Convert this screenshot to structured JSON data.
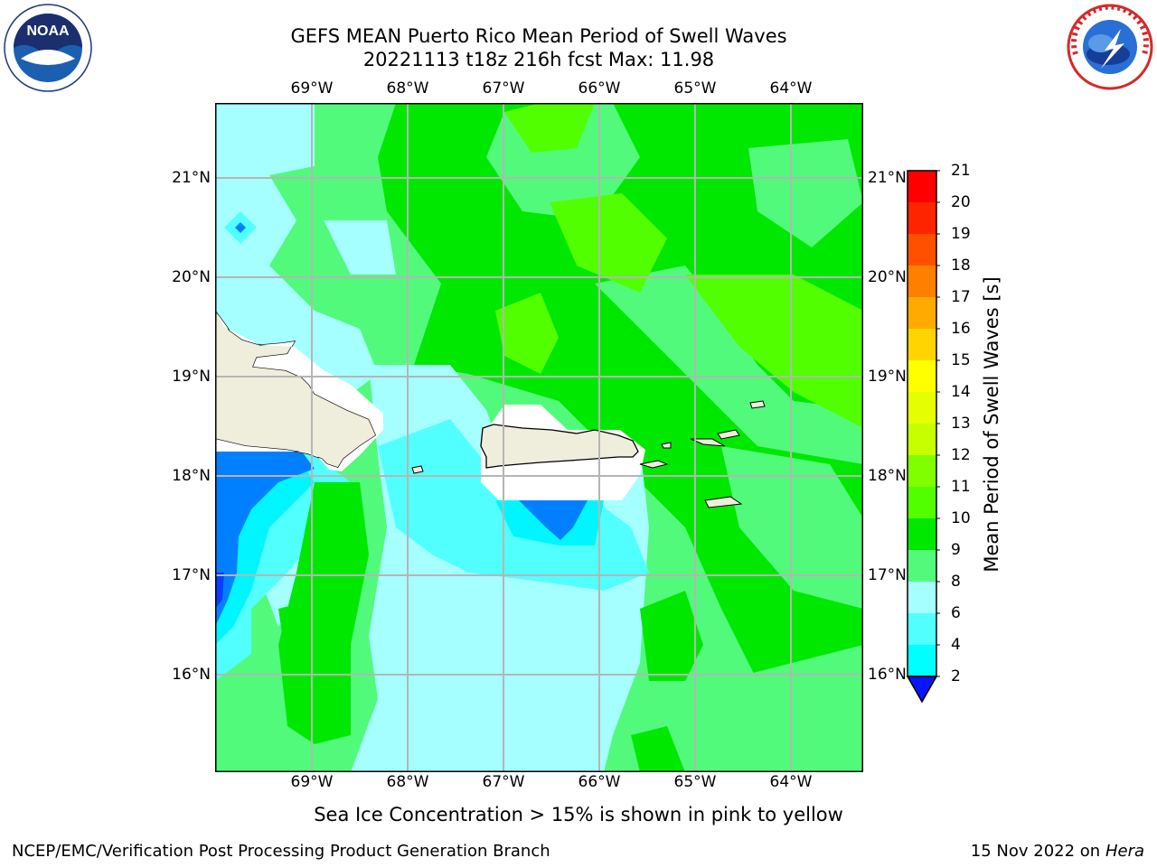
{
  "title": {
    "line1": "GEFS MEAN Puerto Rico Mean Period of Swell Waves",
    "line2": "20221113 t18z 216h fcst   Max: 11.98"
  },
  "logos": {
    "noaa": "NOAA",
    "nws": "NATIONAL WEATHER SERVICE"
  },
  "map": {
    "lon_labels": [
      "69°W",
      "68°W",
      "67°W",
      "66°W",
      "65°W",
      "64°W"
    ],
    "lat_labels": [
      "21°N",
      "20°N",
      "19°N",
      "18°N",
      "17°N",
      "16°N"
    ]
  },
  "colorbar": {
    "title": "Mean Period of Swell Waves [s]",
    "ticks": [
      "21",
      "20",
      "19",
      "18",
      "17",
      "16",
      "15",
      "14",
      "13",
      "12",
      "11",
      "10",
      "9",
      "8",
      "6",
      "4",
      "2"
    ],
    "colors": [
      "#ff0000",
      "#ff2400",
      "#ff5000",
      "#ff7f00",
      "#ffaa00",
      "#ffd400",
      "#ffff00",
      "#e6ff00",
      "#c8ff00",
      "#7fff00",
      "#52ff00",
      "#00e800",
      "#52fa7c",
      "#a6ffff",
      "#52ffff",
      "#00ffff",
      "#0080ff"
    ],
    "underflow_color": "#0a14ff"
  },
  "field_colors": {
    "deep_blue": "#0a3cff",
    "blue": "#0080ff",
    "cyan": "#00f5ff",
    "light_cyan": "#52ffff",
    "pale_cyan": "#a6ffff",
    "sea_green": "#52fa7c",
    "green": "#00e800",
    "yellow_green": "#52ff00",
    "land": "#efeddc"
  },
  "note": "Sea Ice Concentration > 15% is shown in pink to yellow",
  "footer": {
    "left": "NCEP/EMC/Verification Post Processing Product Generation Branch",
    "right_date": "15 Nov 2022 on",
    "right_host": "Hera"
  }
}
